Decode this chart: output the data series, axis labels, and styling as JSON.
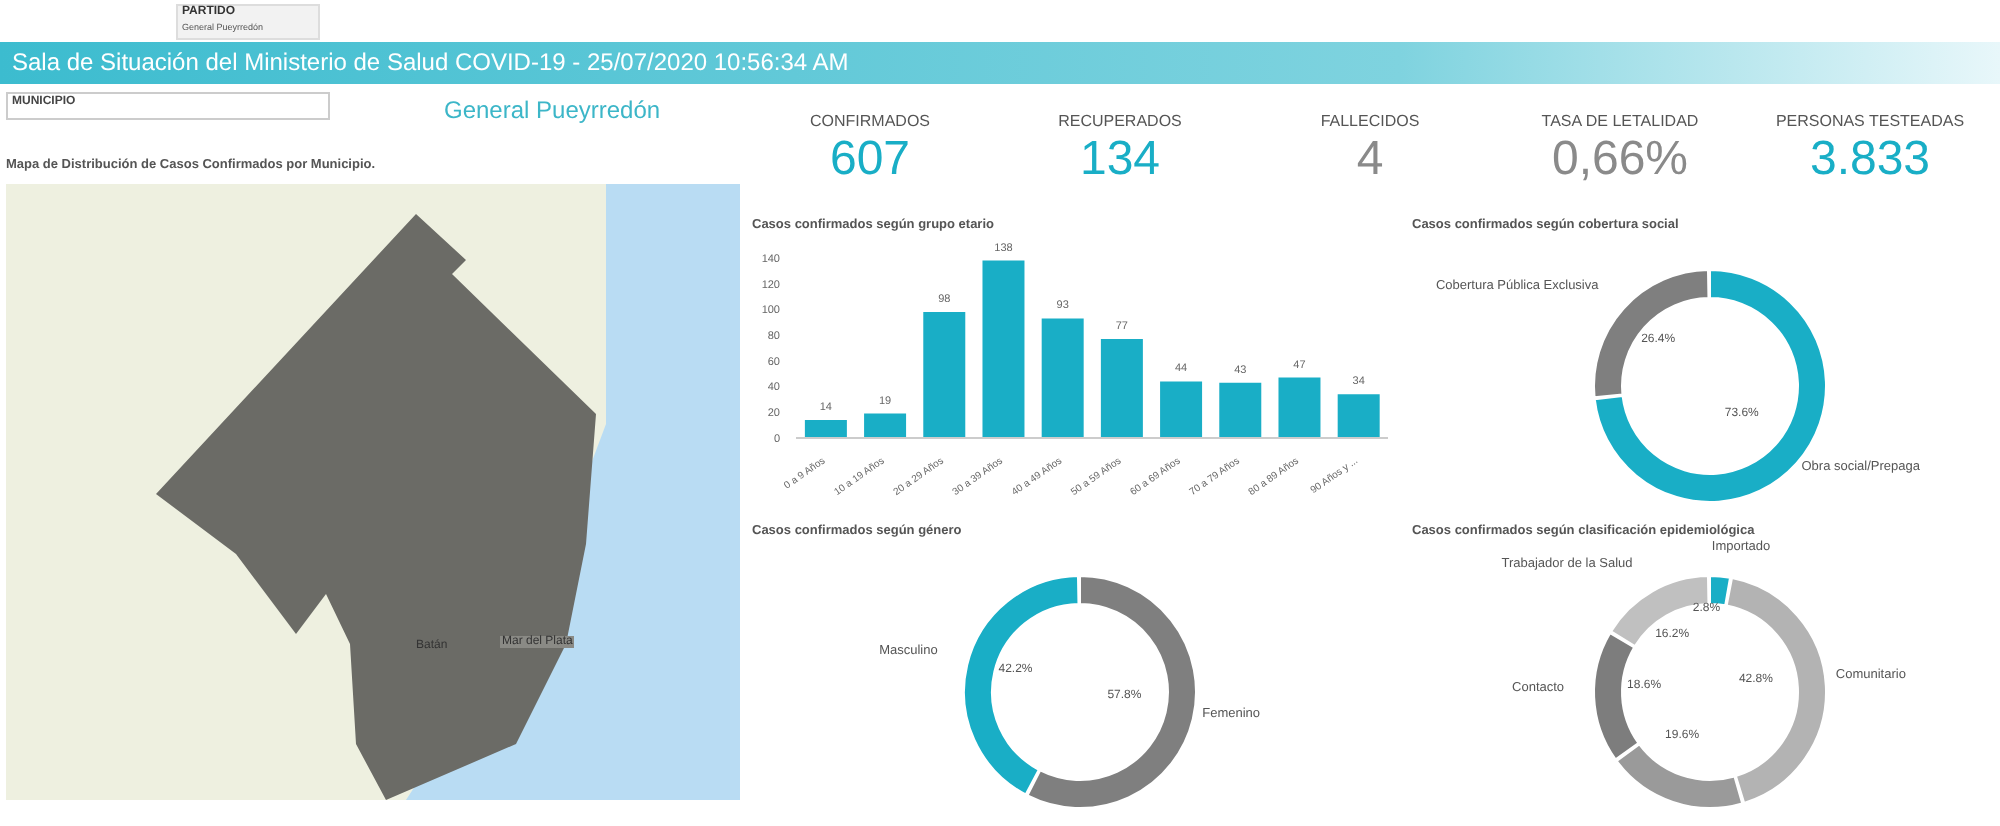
{
  "chart_data": [
    {
      "type": "other",
      "title": "Sala de Situación del Ministerio de Salud COVID-19 - 25/07/2020 10:56:34 AM",
      "categories": [
        "CONFIRMADOS",
        "RECUPERADOS",
        "FALLECIDOS",
        "TASA DE LETALIDAD",
        "PERSONAS TESTEADAS"
      ],
      "value_labels": [
        "607",
        "134",
        "4",
        "0,66%",
        "3.833"
      ],
      "colors": [
        "#19aec6",
        "#19aec6",
        "#8a8a8a",
        "#8a8a8a",
        "#19aec6"
      ],
      "annotations": [
        "PARTIDO",
        "General Pueyrredón",
        "MUNICIPIO",
        "General Pueyrredón",
        "Mapa de Distribución de Casos Confirmados por Municipio.",
        "Batán",
        "Mar del Plata"
      ]
    },
    {
      "type": "bar",
      "title": "Casos confirmados según grupo etario",
      "categories": [
        "0 a 9 Años",
        "10 a 19 Años",
        "20 a 29 Años",
        "30 a 39 Años",
        "40 a 49 Años",
        "50 a 59 Años",
        "60 a 69 Años",
        "70 a 79 Años",
        "80 a 89 Años",
        "90 Años y ..."
      ],
      "values": [
        14,
        19,
        98,
        138,
        93,
        77,
        44,
        43,
        47,
        34
      ],
      "color": "#19aec6",
      "ylim": [
        0,
        140
      ],
      "yticks": [
        0,
        20,
        40,
        60,
        80,
        100,
        120,
        140
      ],
      "data_labels": true
    },
    {
      "type": "donut",
      "title": "Casos confirmados según cobertura social",
      "categories": [
        "Obra social/Prepaga",
        "Cobertura Pública Exclusiva"
      ],
      "values": [
        73.6,
        26.4
      ],
      "value_labels": [
        "73.6%",
        "26.4%"
      ],
      "colors": [
        "#19aec6",
        "#7f7f7f"
      ],
      "data_labels": true
    },
    {
      "type": "donut",
      "title": "Casos confirmados según género",
      "categories": [
        "Femenino",
        "Masculino"
      ],
      "values": [
        57.8,
        42.2
      ],
      "value_labels": [
        "57.8%",
        "42.2%"
      ],
      "colors": [
        "#7f7f7f",
        "#19aec6"
      ],
      "data_labels": true
    },
    {
      "type": "donut",
      "title": "Casos confirmados según clasificación epidemiológica",
      "categories": [
        "Importado",
        "Comunitario",
        null,
        "Contacto",
        "Trabajador de la Salud"
      ],
      "values": [
        2.8,
        42.8,
        19.6,
        18.6,
        16.2
      ],
      "value_labels": [
        "2.8%",
        "42.8%",
        "19.6%",
        "18.6%",
        "16.2%"
      ],
      "colors": [
        "#19aec6",
        "#b3b3b3",
        "#9a9a9a",
        "#7d7d7d",
        "#c0c0c0"
      ],
      "data_labels": true
    }
  ]
}
